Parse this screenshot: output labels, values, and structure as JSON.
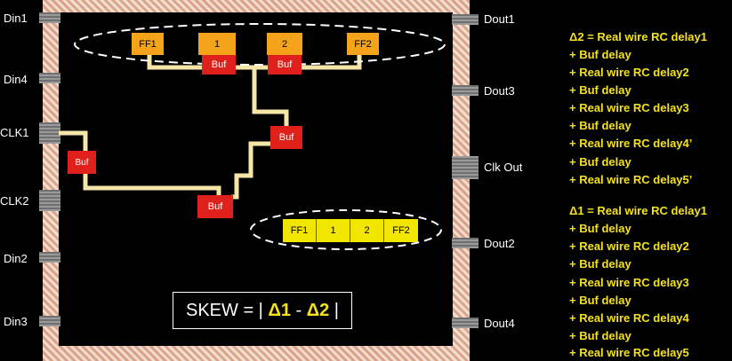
{
  "pins_left": [
    {
      "label": "Din1"
    },
    {
      "label": "Din4"
    },
    {
      "label": "CLK1"
    },
    {
      "label": "CLK2"
    },
    {
      "label": "Din2"
    },
    {
      "label": "Din3"
    }
  ],
  "pins_right": [
    {
      "label": "Dout1"
    },
    {
      "label": "Dout3"
    },
    {
      "label": "Clk Out"
    },
    {
      "label": "Dout2"
    },
    {
      "label": "Dout4"
    }
  ],
  "top_group": {
    "ff1": "FF1",
    "c1": "1",
    "c2": "2",
    "ff2": "FF2"
  },
  "bottom_group": {
    "ff1": "FF1",
    "c1": "1",
    "c2": "2",
    "ff2": "FF2"
  },
  "buffers": {
    "b1": "Buf",
    "b2": "Buf",
    "b3": "Buf",
    "b4": "Buf",
    "b5": "Buf"
  },
  "skew": {
    "prefix": "SKEW = |",
    "d1": "Δ1",
    "minus": "-",
    "d2": "Δ2",
    "suffix": "|"
  },
  "equations": {
    "delta2": [
      "Δ2 = Real wire RC delay1",
      "+ Buf delay",
      "+ Real wire RC delay2",
      "+ Buf delay",
      "+ Real wire RC delay3",
      "+ Buf delay",
      "+ Real wire RC delay4’",
      "+ Buf delay",
      "+ Real wire RC delay5’"
    ],
    "delta1": [
      "Δ1 = Real wire RC delay1",
      "+ Buf delay",
      "+ Real wire RC delay2",
      "+ Buf delay",
      "+ Real wire RC delay3",
      "+ Buf delay",
      "+ Real wire RC delay4",
      "+ Buf delay",
      "+ Real wire RC delay5"
    ]
  },
  "colors": {
    "wire": "#f5e6a8",
    "buffer": "#e0201a",
    "flop_top": "#f5a31a",
    "flop_bottom": "#f2e600",
    "text_eq": "#f5e21a"
  }
}
